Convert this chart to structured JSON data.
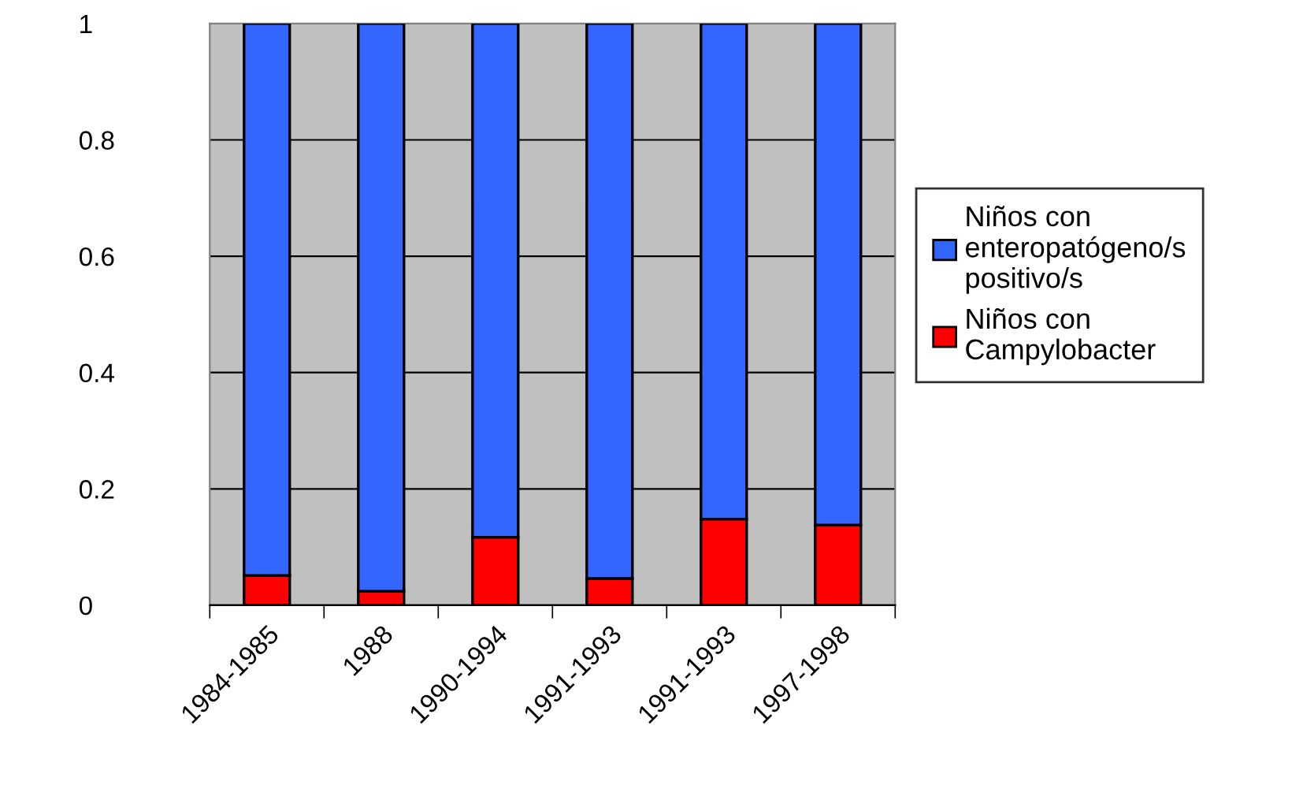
{
  "chart_data": {
    "type": "bar",
    "stacked": true,
    "categories": [
      "1984-1985",
      "1988",
      "1990-1994",
      "1991-1993",
      "1991-1993",
      "1997-1998"
    ],
    "series": [
      {
        "name": "Niños con Campylobacter",
        "color": "#ff0000",
        "values": [
          0.051,
          0.024,
          0.117,
          0.046,
          0.148,
          0.138
        ]
      },
      {
        "name": "Niños con enteropatógeno/s positivo/s",
        "color": "#3366ff",
        "values": [
          0.949,
          0.976,
          0.883,
          0.954,
          0.852,
          0.862
        ]
      }
    ],
    "ylim": [
      0,
      1
    ],
    "yticks": [
      0,
      0.2,
      0.4,
      0.6,
      0.8,
      1
    ],
    "grid": "y",
    "legend": "right"
  }
}
